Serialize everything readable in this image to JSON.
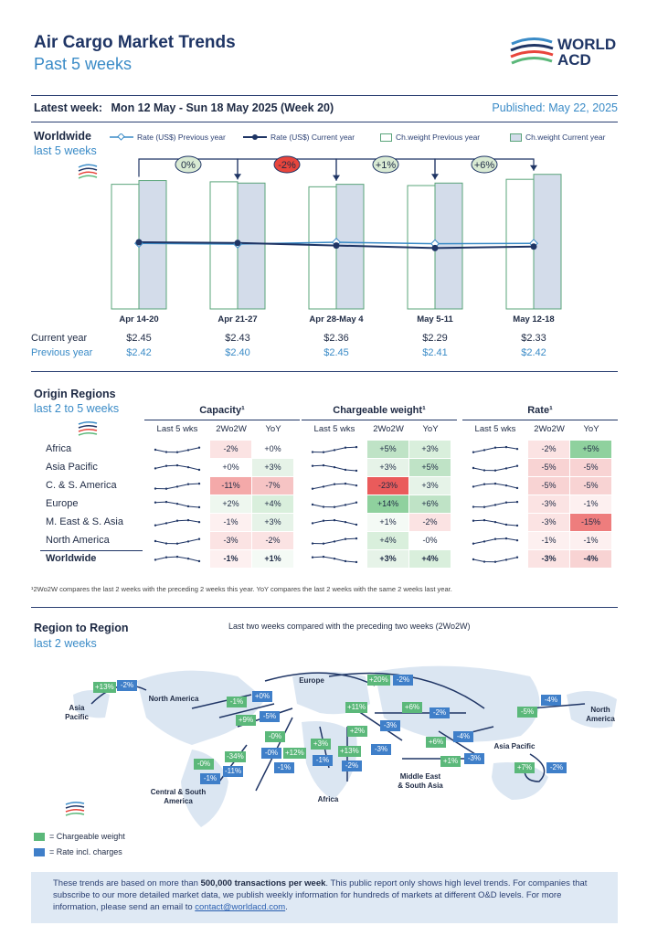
{
  "header": {
    "title": "Air Cargo Market Trends",
    "subtitle": "Past 5 weeks",
    "logo_line1": "WORLD",
    "logo_line2": "ACD",
    "latest_label": "Latest week:",
    "latest_value": "Mon 12 May - Sun 18 May 2025 (Week 20)",
    "published": "Published: May 22, 2025"
  },
  "worldwide": {
    "title": "Worldwide",
    "subtitle": "last 5 weeks",
    "legend": {
      "rate_prev": "Rate (US$) Previous year",
      "rate_curr": "Rate (US$) Current year",
      "cw_prev": "Ch.weight Previous year",
      "cw_curr": "Ch.weight Current year"
    },
    "row_current": "Current year",
    "row_previous": "Previous year"
  },
  "chart_data": {
    "type": "bar",
    "title": "Worldwide last 5 weeks",
    "categories": [
      "Apr 14-20",
      "Apr 21-27",
      "Apr 28-May 4",
      "May 5-11",
      "May 12-18"
    ],
    "series": [
      {
        "name": "Ch.weight Previous year",
        "values": [
          100,
          102,
          98,
          99,
          104
        ]
      },
      {
        "name": "Ch.weight Current year",
        "values": [
          103,
          101,
          100,
          101,
          108
        ]
      },
      {
        "name": "Rate (US$) Previous year",
        "values": [
          2.42,
          2.4,
          2.45,
          2.41,
          2.42
        ]
      },
      {
        "name": "Rate (US$) Current year",
        "values": [
          2.45,
          2.43,
          2.36,
          2.29,
          2.33
        ]
      }
    ],
    "current_year_labels": [
      "$2.45",
      "$2.43",
      "$2.36",
      "$2.29",
      "$2.33"
    ],
    "previous_year_labels": [
      "$2.42",
      "$2.40",
      "$2.45",
      "$2.41",
      "$2.42"
    ],
    "changes": [
      {
        "label": "0%",
        "color": "#d9ead3"
      },
      {
        "label": "-2%",
        "color": "#e8453c"
      },
      {
        "label": "+1%",
        "color": "#d9ead3"
      },
      {
        "label": "+6%",
        "color": "#d9ead3"
      }
    ]
  },
  "origin": {
    "title": "Origin Regions",
    "subtitle": "last 2 to 5 weeks",
    "groups": [
      "Capacity¹",
      "Chargeable weight¹",
      "Rate¹"
    ],
    "subheads": [
      "Last 5 wks",
      "2Wo2W",
      "YoY"
    ],
    "rows": [
      {
        "name": "Africa",
        "cap": [
          "-2%",
          "+0%"
        ],
        "cw": [
          "+5%",
          "+3%"
        ],
        "rate": [
          "-2%",
          "+5%"
        ],
        "cap_c": [
          "#fbe3e3",
          "#ffffff"
        ],
        "cw_c": [
          "#bfe3c6",
          "#d9efdc"
        ],
        "rate_c": [
          "#fbe3e3",
          "#8fd19e"
        ]
      },
      {
        "name": "Asia Pacific",
        "cap": [
          "+0%",
          "+3%"
        ],
        "cw": [
          "+3%",
          "+5%"
        ],
        "rate": [
          "-5%",
          "-5%"
        ],
        "cap_c": [
          "#ffffff",
          "#e6f3e8"
        ],
        "cw_c": [
          "#e6f3e8",
          "#bfe3c6"
        ],
        "rate_c": [
          "#f8d3d3",
          "#f8d3d3"
        ]
      },
      {
        "name": "C. & S. America",
        "cap": [
          "-11%",
          "-7%"
        ],
        "cw": [
          "-23%",
          "+3%"
        ],
        "rate": [
          "-5%",
          "-5%"
        ],
        "cap_c": [
          "#f4a9a9",
          "#f6c4c4"
        ],
        "cw_c": [
          "#ea5b5b",
          "#e6f3e8"
        ],
        "rate_c": [
          "#f8d3d3",
          "#f8d3d3"
        ]
      },
      {
        "name": "Europe",
        "cap": [
          "+2%",
          "+4%"
        ],
        "cw": [
          "+14%",
          "+6%"
        ],
        "rate": [
          "-3%",
          "-1%"
        ],
        "cap_c": [
          "#eef7ef",
          "#d9efdc"
        ],
        "cw_c": [
          "#8fd19e",
          "#bfe3c6"
        ],
        "rate_c": [
          "#fbe3e3",
          "#fdf0f0"
        ]
      },
      {
        "name": "M. East & S. Asia",
        "cap": [
          "-1%",
          "+3%"
        ],
        "cw": [
          "+1%",
          "-2%"
        ],
        "rate": [
          "-3%",
          "-15%"
        ],
        "cap_c": [
          "#fdf0f0",
          "#e6f3e8"
        ],
        "cw_c": [
          "#f4faf5",
          "#fbe3e3"
        ],
        "rate_c": [
          "#fbe3e3",
          "#ee7d7d"
        ]
      },
      {
        "name": "North America",
        "cap": [
          "-3%",
          "-2%"
        ],
        "cw": [
          "+4%",
          "-0%"
        ],
        "rate": [
          "-1%",
          "-1%"
        ],
        "cap_c": [
          "#fbe3e3",
          "#fbe3e3"
        ],
        "cw_c": [
          "#d9efdc",
          "#ffffff"
        ],
        "rate_c": [
          "#fdf0f0",
          "#fdf0f0"
        ]
      },
      {
        "name": "Worldwide",
        "cap": [
          "-1%",
          "+1%"
        ],
        "cw": [
          "+3%",
          "+4%"
        ],
        "rate": [
          "-3%",
          "-4%"
        ],
        "cap_c": [
          "#fdf0f0",
          "#f4faf5"
        ],
        "cw_c": [
          "#e6f3e8",
          "#d9efdc"
        ],
        "rate_c": [
          "#fbe3e3",
          "#f8d3d3"
        ]
      }
    ],
    "footnote": "¹2Wo2W compares the last 2 weeks with the preceding 2 weeks this year. YoY compares the last 2 weeks with the same 2 weeks last year."
  },
  "r2r": {
    "title": "Region to Region",
    "subtitle": "last 2 weeks",
    "caption": "Last two weeks compared with the preceding two weeks (2Wo2W)",
    "labels": {
      "asia_pacific_left": "Asia\nPacific",
      "north_america": "North America",
      "europe": "Europe",
      "north_america_right": "North\nAmerica",
      "asia_pacific": "Asia Pacific",
      "central_south": "Central & South\nAmerica",
      "africa": "Africa",
      "mesa": "Middle East\n& South Asia"
    },
    "tags": [
      {
        "t": "+13%",
        "k": "g"
      },
      {
        "t": "-2%",
        "k": "b"
      },
      {
        "t": "+20%",
        "k": "g"
      },
      {
        "t": "-2%",
        "k": "b"
      },
      {
        "t": "-5%",
        "k": "g"
      },
      {
        "t": "-4%",
        "k": "b"
      },
      {
        "t": "-1%",
        "k": "g"
      },
      {
        "t": "+0%",
        "k": "b"
      },
      {
        "t": "+9%",
        "k": "g"
      },
      {
        "t": "-5%",
        "k": "b"
      },
      {
        "t": "+11%",
        "k": "g"
      },
      {
        "t": "+6%",
        "k": "g"
      },
      {
        "t": "-2%",
        "k": "b"
      },
      {
        "t": "-3%",
        "k": "b"
      },
      {
        "t": "+2%",
        "k": "g"
      },
      {
        "t": "+6%",
        "k": "g"
      },
      {
        "t": "-4%",
        "k": "b"
      },
      {
        "t": "-0%",
        "k": "g"
      },
      {
        "t": "+3%",
        "k": "g"
      },
      {
        "t": "-3%",
        "k": "b"
      },
      {
        "t": "-34%",
        "k": "g"
      },
      {
        "t": "-0%",
        "k": "b"
      },
      {
        "t": "+12%",
        "k": "g"
      },
      {
        "t": "+13%",
        "k": "g"
      },
      {
        "t": "+1%",
        "k": "g"
      },
      {
        "t": "-3%",
        "k": "b"
      },
      {
        "t": "-0%",
        "k": "g"
      },
      {
        "t": "-11%",
        "k": "b"
      },
      {
        "t": "-1%",
        "k": "b"
      },
      {
        "t": "-1%",
        "k": "b"
      },
      {
        "t": "-2%",
        "k": "b"
      },
      {
        "t": "+7%",
        "k": "g"
      },
      {
        "t": "-2%",
        "k": "b"
      },
      {
        "t": "-1%",
        "k": "b"
      }
    ],
    "legend_cw": "= Chargeable weight",
    "legend_rate": "= Rate incl. charges"
  },
  "footer": {
    "t1": "These trends are based on more than ",
    "t2": "500,000 transactions per week",
    "t3": ". This public report only shows high level trends. For companies that subscribe to our more detailed market data, we publish weekly information for hundreds of markets at different O&D levels. For more information, please send an email to ",
    "email": "contact@worldacd.com",
    "t4": "."
  },
  "colors": {
    "navy": "#1f3565",
    "blue": "#3a8bc7",
    "bar_curr": "#d3dcea",
    "bar_border": "#5aa47a"
  }
}
